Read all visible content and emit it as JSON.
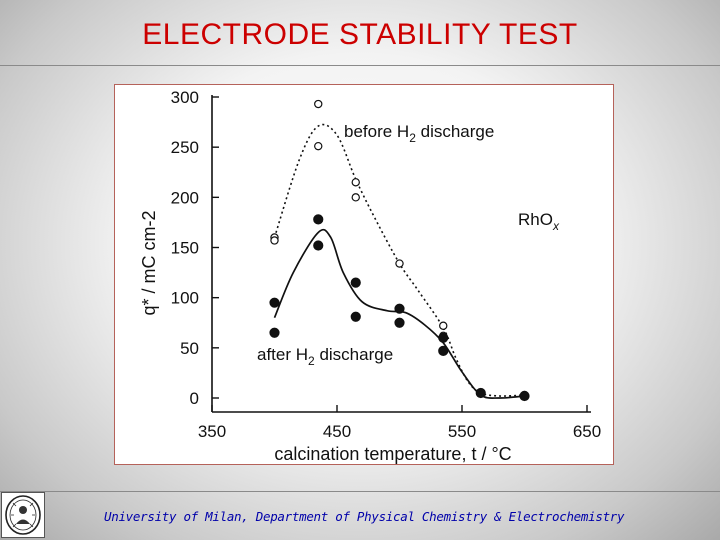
{
  "slide": {
    "title": "ELECTRODE STABILITY TEST",
    "footer": "University of Milan, Department of Physical Chemistry & Electrochemistry",
    "accent_color": "#cc0000",
    "footer_color": "#0000aa",
    "logo_icon": "university-seal-icon"
  },
  "chart_data": {
    "type": "scatter",
    "xlabel": "calcination temperature, t / °C",
    "ylabel": "q* / mC cm-2",
    "xlim": [
      350,
      650
    ],
    "ylim": [
      0,
      300
    ],
    "xticks": [
      350,
      450,
      550,
      650
    ],
    "yticks": [
      0,
      50,
      100,
      150,
      200,
      250,
      300
    ],
    "grid": false,
    "annotations": [
      {
        "id": "before",
        "text_main": "before H",
        "sub": "2",
        "text_tail": " discharge"
      },
      {
        "id": "after",
        "text_main": "after H",
        "sub": "2",
        "text_tail": " discharge"
      },
      {
        "id": "material",
        "text_main": "RhO",
        "sub": "x",
        "text_tail": ""
      }
    ],
    "series": [
      {
        "id": "before",
        "marker": "open-circle",
        "line_style": "dotted",
        "points": [
          [
            400,
            160
          ],
          [
            400,
            157
          ],
          [
            435,
            293
          ],
          [
            435,
            251
          ],
          [
            465,
            215
          ],
          [
            465,
            200
          ],
          [
            500,
            134
          ],
          [
            535,
            72
          ],
          [
            535,
            62
          ],
          [
            565,
            5
          ],
          [
            600,
            3
          ]
        ],
        "curve": [
          [
            400,
            160
          ],
          [
            420,
            238
          ],
          [
            435,
            271
          ],
          [
            450,
            262
          ],
          [
            465,
            218
          ],
          [
            480,
            180
          ],
          [
            500,
            134
          ],
          [
            515,
            107
          ],
          [
            535,
            70
          ],
          [
            545,
            40
          ],
          [
            555,
            16
          ],
          [
            565,
            5
          ],
          [
            580,
            2
          ],
          [
            600,
            3
          ]
        ]
      },
      {
        "id": "after",
        "marker": "filled-circle",
        "line_style": "solid",
        "points": [
          [
            400,
            95
          ],
          [
            400,
            65
          ],
          [
            435,
            178
          ],
          [
            435,
            152
          ],
          [
            465,
            115
          ],
          [
            465,
            81
          ],
          [
            500,
            89
          ],
          [
            500,
            75
          ],
          [
            535,
            60
          ],
          [
            535,
            47
          ],
          [
            565,
            5
          ],
          [
            600,
            2
          ]
        ],
        "curve": [
          [
            400,
            80
          ],
          [
            415,
            125
          ],
          [
            435,
            165
          ],
          [
            445,
            160
          ],
          [
            455,
            125
          ],
          [
            470,
            96
          ],
          [
            490,
            87
          ],
          [
            505,
            85
          ],
          [
            520,
            73
          ],
          [
            535,
            55
          ],
          [
            550,
            26
          ],
          [
            565,
            3
          ],
          [
            580,
            0
          ],
          [
            600,
            2
          ]
        ]
      }
    ]
  }
}
